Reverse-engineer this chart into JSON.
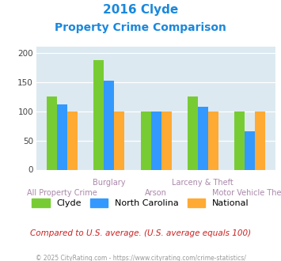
{
  "title_line1": "2016 Clyde",
  "title_line2": "Property Crime Comparison",
  "title_color": "#1a88dd",
  "clyde": [
    125,
    188,
    100,
    125,
    100
  ],
  "nc": [
    112,
    152,
    100,
    108,
    65
  ],
  "national": [
    100,
    100,
    100,
    100,
    100
  ],
  "clyde_color": "#77cc33",
  "nc_color": "#3399ff",
  "national_color": "#ffaa33",
  "ylim": [
    0,
    210
  ],
  "yticks": [
    0,
    50,
    100,
    150,
    200
  ],
  "background_color": "#dce9f0",
  "note": "Compared to U.S. average. (U.S. average equals 100)",
  "note_color": "#cc2222",
  "footer": "© 2025 CityRating.com - https://www.cityrating.com/crime-statistics/",
  "footer_color": "#999999",
  "legend_labels": [
    "Clyde",
    "North Carolina",
    "National"
  ],
  "bar_width": 0.22,
  "positions": [
    0,
    1,
    2,
    3,
    4
  ],
  "top_labels": {
    "1": "Burglary",
    "3": "Larceny & Theft"
  },
  "bot_labels": {
    "0": "All Property Crime",
    "2": "Arson",
    "4": "Motor Vehicle Theft"
  },
  "label_color": "#aa88aa"
}
